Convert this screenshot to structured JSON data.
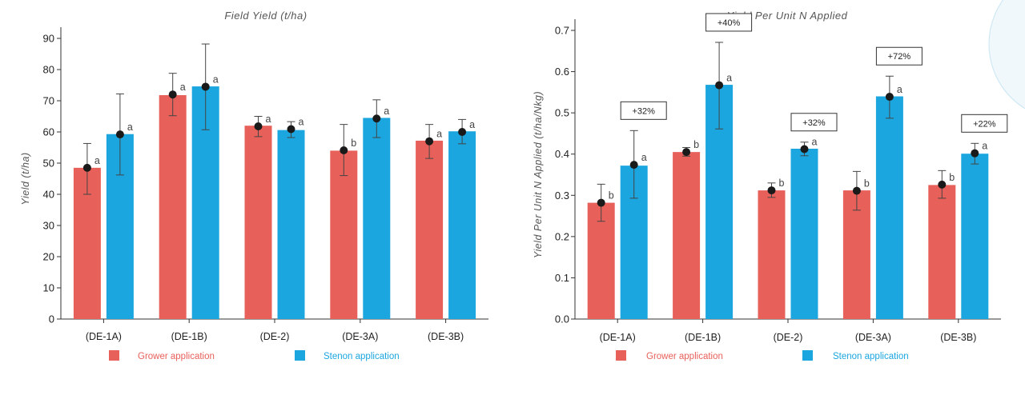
{
  "colors": {
    "grower": "#E8605A",
    "stenon": "#1BA6DF",
    "axis": "#333333",
    "marker": "#1a1a1a"
  },
  "chart_data": [
    {
      "type": "bar",
      "title": "Field Yield (t/ha)",
      "ylabel": "Yield (t/ha)",
      "xlabel": "",
      "ylim": [
        0,
        90
      ],
      "yticks": [
        "0",
        "10",
        "20",
        "30",
        "40",
        "50",
        "60",
        "70",
        "80",
        "90"
      ],
      "categories": [
        "(DE-1A)",
        "(DE-1B)",
        "(DE-2)",
        "(DE-3A)",
        "(DE-3B)"
      ],
      "series": [
        {
          "name": "Grower application",
          "color": "#E8605A",
          "values": [
            48.5,
            71.8,
            62,
            54,
            57.2
          ],
          "points": [
            48.5,
            72,
            61.8,
            54.1,
            57
          ],
          "err_low": [
            40,
            65.2,
            58.5,
            46,
            51.5
          ],
          "err_high": [
            56.3,
            78.8,
            65,
            62.4,
            62.4
          ],
          "sig": [
            "a",
            "a",
            "a",
            "b",
            "a"
          ]
        },
        {
          "name": "Stenon application",
          "color": "#1BA6DF",
          "values": [
            59.3,
            74.6,
            60.6,
            64.5,
            60.2
          ],
          "points": [
            59.2,
            74.5,
            60.9,
            64.3,
            60
          ],
          "err_low": [
            46.2,
            60.7,
            58.2,
            58.2,
            56.2
          ],
          "err_high": [
            72.2,
            88.2,
            63.3,
            70.3,
            64
          ],
          "sig": [
            "a",
            "a",
            "a",
            "a",
            "a"
          ]
        }
      ],
      "annotations": [],
      "legend": [
        "Grower application",
        "Stenon application"
      ],
      "legend_position": "bottom",
      "grid": false
    },
    {
      "type": "bar",
      "title": "Yield Per Unit N Applied",
      "ylabel": "Yield Per Unit N Applied (t/ha/Nkg)",
      "xlabel": "",
      "ylim": [
        0,
        0.7
      ],
      "yticks": [
        "0.0",
        "0.1",
        "0.2",
        "0.3",
        "0.4",
        "0.5",
        "0.6",
        "0.7"
      ],
      "categories": [
        "(DE-1A)",
        "(DE-1B)",
        "(DE-2)",
        "(DE-3A)",
        "(DE-3B)"
      ],
      "series": [
        {
          "name": "Grower application",
          "color": "#E8605A",
          "values": [
            0.282,
            0.405,
            0.312,
            0.312,
            0.325
          ],
          "points": [
            0.282,
            0.405,
            0.312,
            0.311,
            0.326
          ],
          "err_low": [
            0.237,
            0.395,
            0.295,
            0.264,
            0.293
          ],
          "err_high": [
            0.327,
            0.416,
            0.33,
            0.358,
            0.36
          ],
          "sig": [
            "b",
            "b",
            "b",
            "b",
            "b"
          ]
        },
        {
          "name": "Stenon application",
          "color": "#1BA6DF",
          "values": [
            0.372,
            0.568,
            0.413,
            0.54,
            0.401
          ],
          "points": [
            0.374,
            0.567,
            0.412,
            0.539,
            0.402
          ],
          "err_low": [
            0.293,
            0.461,
            0.396,
            0.487,
            0.376
          ],
          "err_high": [
            0.457,
            0.671,
            0.429,
            0.589,
            0.426
          ],
          "sig": [
            "a",
            "a",
            "a",
            "a",
            "a"
          ]
        }
      ],
      "annotations": [
        "+32%",
        "+40%",
        "+32%",
        "+72%",
        "+22%"
      ],
      "legend": [
        "Grower application",
        "Stenon application"
      ],
      "legend_position": "bottom",
      "grid": false
    }
  ]
}
